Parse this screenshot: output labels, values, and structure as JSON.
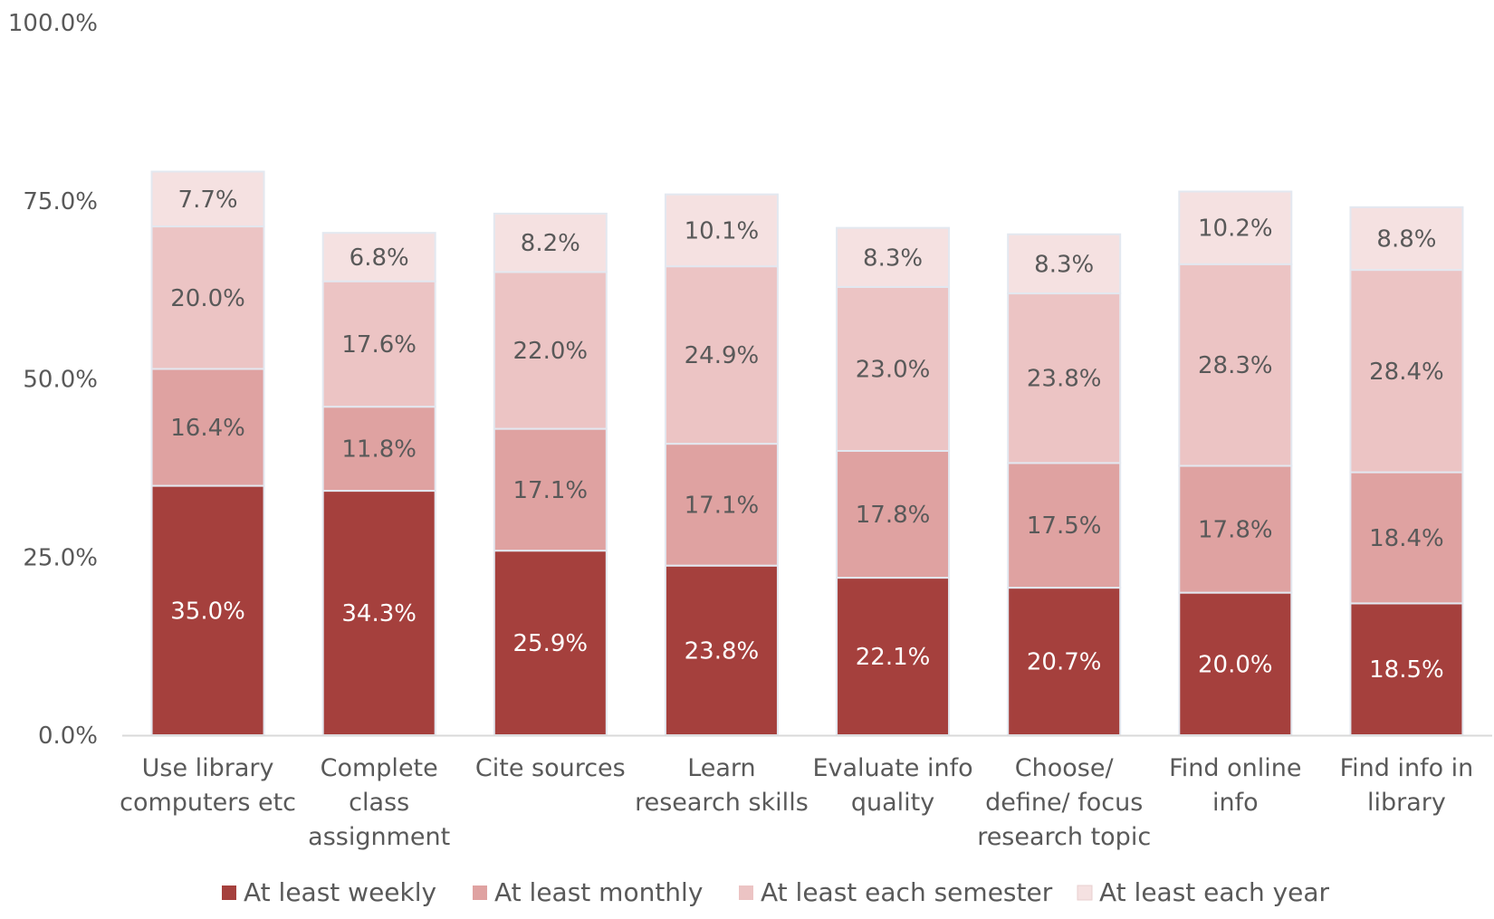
{
  "chart_data": {
    "type": "bar",
    "stacked": true,
    "categories": [
      [
        "Use library",
        "computers etc"
      ],
      [
        "Complete",
        "class",
        "assignment"
      ],
      [
        "Cite sources"
      ],
      [
        "Learn",
        "research skills"
      ],
      [
        "Evaluate info",
        "quality"
      ],
      [
        "Choose/",
        "define/ focus",
        "research topic"
      ],
      [
        "Find online",
        "info"
      ],
      [
        "Find info in",
        "library"
      ]
    ],
    "series": [
      {
        "name": "At least weekly",
        "color": "#a5403d",
        "label_color": "#ffffff",
        "values": [
          35.0,
          34.3,
          25.9,
          23.8,
          22.1,
          20.7,
          20.0,
          18.5
        ],
        "labels": [
          "35.0%",
          "34.3%",
          "25.9%",
          "23.8%",
          "22.1%",
          "20.7%",
          "20.0%",
          "18.5%"
        ]
      },
      {
        "name": "At least monthly",
        "color": "#dfa2a1",
        "label_color": "#595959",
        "values": [
          16.4,
          11.8,
          17.1,
          17.1,
          17.8,
          17.5,
          17.8,
          18.4
        ],
        "labels": [
          "16.4%",
          "11.8%",
          "17.1%",
          "17.1%",
          "17.8%",
          "17.5%",
          "17.8%",
          "18.4%"
        ]
      },
      {
        "name": "At least each semester",
        "color": "#ecc4c4",
        "label_color": "#595959",
        "values": [
          20.0,
          17.6,
          22.0,
          24.9,
          23.0,
          23.8,
          28.3,
          28.4
        ],
        "labels": [
          "20.0%",
          "17.6%",
          "22.0%",
          "24.9%",
          "23.0%",
          "23.8%",
          "28.3%",
          "28.4%"
        ]
      },
      {
        "name": "At least each year",
        "color": "#f5e1e1",
        "label_color": "#595959",
        "values": [
          7.7,
          6.8,
          8.2,
          10.1,
          8.3,
          8.3,
          10.2,
          8.8
        ],
        "labels": [
          "7.7%",
          "6.8%",
          "8.2%",
          "10.1%",
          "8.3%",
          "8.3%",
          "10.2%",
          "8.8%"
        ]
      }
    ],
    "yticks": [
      "0.0%",
      "25.0%",
      "50.0%",
      "75.0%",
      "100.0%"
    ],
    "ylim": [
      0,
      100
    ],
    "grid": false,
    "legend_position": "bottom",
    "axis_color": "#d9d9d9"
  }
}
